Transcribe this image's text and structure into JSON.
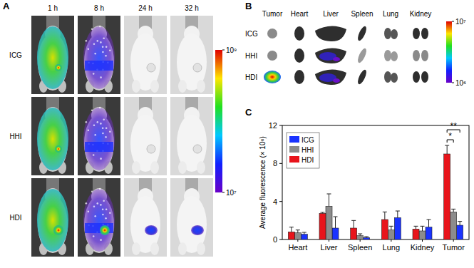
{
  "panel_a": {
    "label": "A",
    "columns": [
      "1 h",
      "8 h",
      "24 h",
      "32 h"
    ],
    "rows": [
      "ICG",
      "HHI",
      "HDI"
    ],
    "colorbar": {
      "range": [
        10000000,
        1000000000
      ],
      "ticks": [
        {
          "value": 10000000,
          "label": "10⁷"
        },
        {
          "value": 1000000000,
          "label": "10⁹"
        }
      ]
    }
  },
  "panel_b": {
    "label": "B",
    "columns": [
      "Tumor",
      "Heart",
      "Liver",
      "Spleen",
      "Lung",
      "Kidney"
    ],
    "rows": [
      "ICG",
      "HHI",
      "HDI"
    ],
    "colorbar": {
      "range": [
        1000000,
        10000000
      ],
      "ticks": [
        {
          "value": 1000000,
          "label": "10⁶"
        },
        {
          "value": 10000000,
          "label": "10⁷"
        }
      ]
    }
  },
  "chart_data": {
    "type": "bar",
    "panel_label": "C",
    "y_label": "Average fluorescence (× 10⁶)",
    "categories": [
      "Heart",
      "Liver",
      "Spleen",
      "Lung",
      "Kidney",
      "Tumor"
    ],
    "series": [
      {
        "name": "ICG",
        "color": "#1a33ff",
        "values": [
          0.55,
          1.2,
          0.2,
          2.3,
          1.3,
          1.5
        ],
        "errors": [
          0.2,
          1.2,
          0.1,
          0.7,
          0.8,
          0.4
        ]
      },
      {
        "name": "HHI",
        "color": "#8c8c8c",
        "values": [
          0.7,
          3.5,
          0.4,
          1.0,
          0.9,
          2.9
        ],
        "errors": [
          0.3,
          1.3,
          0.2,
          0.4,
          0.5,
          0.3
        ]
      },
      {
        "name": "HDI",
        "color": "#e8141b",
        "values": [
          0.8,
          2.75,
          1.2,
          2.1,
          1.1,
          9.0
        ],
        "errors": [
          0.5,
          0.1,
          0.8,
          0.8,
          0.3,
          0.9
        ]
      }
    ],
    "ylim": [
      0,
      12
    ],
    "yticks": [
      0,
      4,
      8,
      12
    ],
    "legend": "upper-left",
    "annotations": [
      {
        "text": "*",
        "category": "Tumor",
        "series": [
          "HDI",
          "HHI"
        ]
      },
      {
        "text": "**",
        "category": "Tumor",
        "series": [
          "HDI",
          "ICG"
        ]
      }
    ]
  }
}
